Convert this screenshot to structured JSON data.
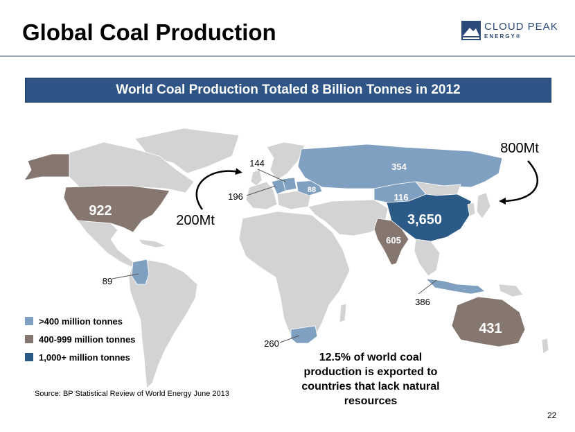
{
  "header": {
    "title": "Global Coal Production",
    "logo_line1": "CLOUD PEAK",
    "logo_line2": "ENERGY®"
  },
  "banner": "World Coal Production Totaled 8 Billion Tonnes in 2012",
  "map": {
    "labels": {
      "usa": "922",
      "china": "3,650",
      "russia": "354",
      "kazakhstan": "116",
      "india": "605",
      "australia": "431",
      "ukraine": "88",
      "germany": "196",
      "poland": "144",
      "colombia": "89",
      "indonesia": "386",
      "south_africa": "260"
    },
    "flows": {
      "west": "200Mt",
      "east": "800Mt"
    },
    "colors": {
      "base": "#d3d3d3",
      "tier1": "#7fa0c0",
      "tier2": "#857670",
      "tier3": "#2c5a87",
      "border": "#ffffff"
    }
  },
  "legend": {
    "items": [
      {
        "label": ">400 million tonnes",
        "color": "#7fa0c0"
      },
      {
        "label": "400-999 million tonnes",
        "color": "#857670"
      },
      {
        "label": "1,000+ million tonnes",
        "color": "#2c5a87"
      }
    ]
  },
  "note": "12.5% of world coal production is exported to countries that lack natural resources",
  "source": "Source: BP Statistical Review of World Energy June 2013",
  "page_number": "22"
}
